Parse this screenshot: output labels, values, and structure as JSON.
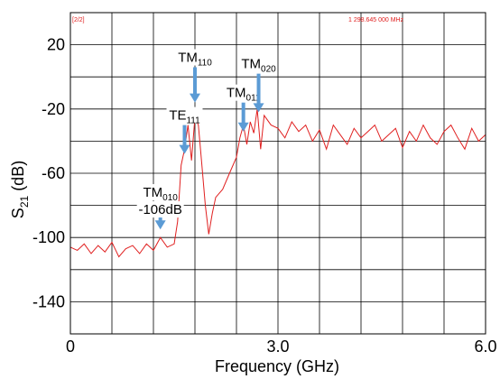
{
  "chart_data": {
    "type": "line",
    "xlabel": "Frequency (GHz)",
    "ylabel": {
      "base": "S",
      "sub": "21",
      "rest": " (dB)"
    },
    "xlim": [
      0,
      6
    ],
    "ylim": [
      -160,
      40
    ],
    "x_ticks": [
      {
        "value": 0,
        "label": "0"
      },
      {
        "value": 3,
        "label": "3.0"
      },
      {
        "value": 6,
        "label": "6.0"
      }
    ],
    "y_ticks": [
      {
        "value": 20,
        "label": "20"
      },
      {
        "value": -20,
        "label": "-20"
      },
      {
        "value": -60,
        "label": "-60"
      },
      {
        "value": -100,
        "label": "-100"
      },
      {
        "value": -140,
        "label": "-140"
      }
    ],
    "grid": true,
    "series_color": "#e02020",
    "arrow_color": "#5b9bd5",
    "marker_readout": "1 298.645 000 MHz",
    "marker_badge": "[2/2]",
    "series": [
      {
        "x": [
          0.0,
          0.1,
          0.2,
          0.3,
          0.4,
          0.5,
          0.6,
          0.7,
          0.8,
          0.9,
          1.0,
          1.1,
          1.2,
          1.3,
          1.4,
          1.5,
          1.55,
          1.6,
          1.65,
          1.7,
          1.75,
          1.8,
          1.85,
          1.9,
          1.95,
          2.0,
          2.05,
          2.1,
          2.2,
          2.3,
          2.4,
          2.45,
          2.5,
          2.55,
          2.6,
          2.65,
          2.7,
          2.75,
          2.8,
          2.9,
          3.0,
          3.1,
          3.2,
          3.3,
          3.4,
          3.5,
          3.6,
          3.7,
          3.8,
          3.9,
          4.0,
          4.1,
          4.2,
          4.3,
          4.4,
          4.5,
          4.6,
          4.7,
          4.8,
          4.9,
          5.0,
          5.1,
          5.2,
          5.3,
          5.4,
          5.5,
          5.6,
          5.7,
          5.8,
          5.9,
          6.0
        ],
        "y": [
          -106,
          -108,
          -104,
          -110,
          -105,
          -109,
          -103,
          -112,
          -107,
          -105,
          -110,
          -104,
          -108,
          -100,
          -106,
          -104,
          -90,
          -55,
          -45,
          -30,
          -52,
          -25,
          -30,
          -55,
          -80,
          -98,
          -85,
          -75,
          -70,
          -60,
          -50,
          -38,
          -30,
          -42,
          -28,
          -35,
          -20,
          -45,
          -24,
          -30,
          -32,
          -38,
          -28,
          -34,
          -30,
          -40,
          -33,
          -45,
          -30,
          -36,
          -42,
          -32,
          -38,
          -34,
          -30,
          -40,
          -36,
          -32,
          -44,
          -34,
          -40,
          -30,
          -38,
          -42,
          -34,
          -30,
          -38,
          -45,
          -32,
          -40,
          -36
        ]
      }
    ],
    "annotations": [
      {
        "main": "TM",
        "sub": "010",
        "x": 1.3,
        "y_tip": -95,
        "y_tail": -78,
        "extra": "-106dB"
      },
      {
        "main": "TE",
        "sub": "111",
        "x": 1.65,
        "y_tip": -48,
        "y_tail": -30
      },
      {
        "main": "TM",
        "sub": "110",
        "x": 1.8,
        "y_tip": -16,
        "y_tail": 6
      },
      {
        "main": "TM",
        "sub": "011",
        "x": 2.5,
        "y_tip": -34,
        "y_tail": -16
      },
      {
        "main": "TM",
        "sub": "020",
        "x": 2.72,
        "y_tip": -22,
        "y_tail": 2
      }
    ]
  }
}
